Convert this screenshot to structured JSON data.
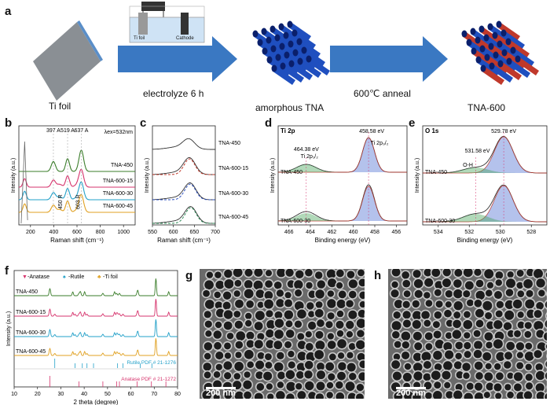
{
  "panel_labels": {
    "a": "a",
    "b": "b",
    "c": "c",
    "d": "d",
    "e": "e",
    "f": "f",
    "g": "g",
    "h": "h"
  },
  "schematic": {
    "ti_foil": "Ti foil",
    "step1": "electrolyze 6 h",
    "amorphous": "amorphous TNA",
    "step2": "600℃ anneal",
    "tna600": "TNA-600",
    "cell_ti": "Ti foil",
    "cell_cathode": "Cathode"
  },
  "colors": {
    "tna450": "#3a7d2a",
    "tna600_15": "#d6336c",
    "tna600_30": "#22a0c8",
    "tna600_45": "#e0a020",
    "arrow": "#3a78c2",
    "anatase": "#d6336c",
    "rutile": "#22a0c8",
    "tifoil": "#e0a020"
  },
  "chart_data": [
    {
      "type": "line",
      "panel": "b",
      "xlabel": "Raman shift (cm⁻¹)",
      "ylabel": "Intensity (a.u.)",
      "xlim": [
        100,
        1100
      ],
      "xticks": [
        "200",
        "400",
        "600",
        "800",
        "1000"
      ],
      "series": [
        {
          "name": "TNA-450",
          "color": "#3a7d2a"
        },
        {
          "name": "TNA-600-15",
          "color": "#d6336c"
        },
        {
          "name": "TNA-600-30",
          "color": "#22a0c8"
        },
        {
          "name": "TNA-600-45",
          "color": "#e0a020"
        }
      ],
      "annotations": [
        "397 A",
        "519 A",
        "637 A",
        "450 R",
        "603 R"
      ],
      "excitation": "λex=532nm"
    },
    {
      "type": "line",
      "panel": "c",
      "xlabel": "Raman shift (cm⁻¹)",
      "ylabel": "Intensity (a.u.)",
      "xlim": [
        550,
        700
      ],
      "xticks": [
        "550",
        "600",
        "650",
        "700"
      ],
      "series": [
        {
          "name": "TNA-450"
        },
        {
          "name": "TNA-600-15"
        },
        {
          "name": "TNA-600-30"
        },
        {
          "name": "TNA-600-45"
        }
      ]
    },
    {
      "type": "line",
      "panel": "d",
      "title": "Ti 2p",
      "xlabel": "Binding energy (eV)",
      "ylabel": "Intensity (a.u.)",
      "xlim": [
        467,
        455
      ],
      "xticks": [
        "466",
        "464",
        "462",
        "460",
        "458",
        "456"
      ],
      "series": [
        {
          "name": "TNA-450"
        },
        {
          "name": "TNA-600-30"
        }
      ],
      "annotations": [
        "458.58 eV",
        "464.38 eV"
      ],
      "peaks": [
        "Ti 2p₃/₂",
        "Ti 2p₁/₂"
      ]
    },
    {
      "type": "line",
      "panel": "e",
      "title": "O 1s",
      "xlabel": "Binding energy (eV)",
      "ylabel": "Intensity (a.u.)",
      "xlim": [
        535,
        527
      ],
      "xticks": [
        "534",
        "532",
        "530",
        "528"
      ],
      "series": [
        {
          "name": "TNA-450"
        },
        {
          "name": "TNA-600-30"
        }
      ],
      "annotations": [
        "529.78 eV",
        "531.58 eV",
        "O-H"
      ]
    },
    {
      "type": "line",
      "panel": "f",
      "xlabel": "2 theta (degree)",
      "ylabel": "Intensity (a.u.)",
      "xlim": [
        10,
        80
      ],
      "xticks": [
        "10",
        "20",
        "30",
        "40",
        "50",
        "60",
        "70",
        "80"
      ],
      "legend": [
        "-Anatase",
        "-Rutile",
        "-Ti foil"
      ],
      "series": [
        {
          "name": "TNA-450",
          "color": "#3a7d2a"
        },
        {
          "name": "TNA-600-15",
          "color": "#d6336c"
        },
        {
          "name": "TNA-600-30",
          "color": "#22a0c8"
        },
        {
          "name": "TNA-600-45",
          "color": "#e0a020"
        }
      ],
      "references": [
        "Rutile PDF # 21-1276",
        "Anatase PDF # 21-1272"
      ]
    }
  ],
  "sem": {
    "g_scale": "200 nm",
    "h_scale": "200 nm"
  }
}
